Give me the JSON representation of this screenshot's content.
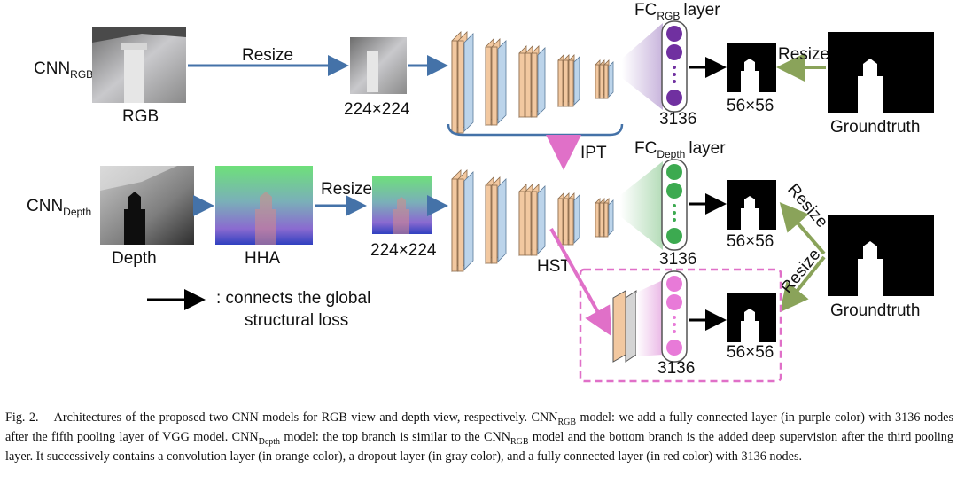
{
  "labels": {
    "cnn_rgb_base": "CNN",
    "cnn_rgb_sub": "RGB",
    "cnn_depth_base": "CNN",
    "cnn_depth_sub": "Depth",
    "rgb": "RGB",
    "depth": "Depth",
    "hha": "HHA",
    "resize": "Resize",
    "size224": "224×224",
    "size56": "56×56",
    "fc_prefix": "FC",
    "fc_rgb_sub": "RGB",
    "fc_depth_sub": "Depth",
    "layer": "layer",
    "nodes": "3136",
    "ipt": "IPT",
    "hst": "HST",
    "groundtruth": "Groundtruth",
    "legend_line1": ": connects the global",
    "legend_line2": "structural loss"
  },
  "caption": {
    "fig": "Fig. 2.",
    "t1": "Architectures of the proposed two CNN models for RGB view and depth view, respectively. CNN",
    "s1": "RGB",
    "t2": " model: we add a fully connected layer (in purple color) with 3136 nodes after the fifth pooling layer of VGG model. CNN",
    "s2": "Depth",
    "t3": " model: the top branch is similar to the CNN",
    "s3": "RGB",
    "t4": " model and the bottom branch is the added deep supervision after the third pooling layer. It successively contains a convolution layer (in orange color), a dropout layer (in gray color), and a fully connected layer (in red color) with 3136 nodes."
  },
  "colors": {
    "blue_arrow": "#4472a8",
    "green_arrow": "#8aa35a",
    "pink": "#e070c8",
    "purple": "#7030a0",
    "green_node": "#3caa50",
    "pink_node": "#e87ad8",
    "conv_orange": "#f2c8a0",
    "conv_blue": "#bcd4ea"
  }
}
